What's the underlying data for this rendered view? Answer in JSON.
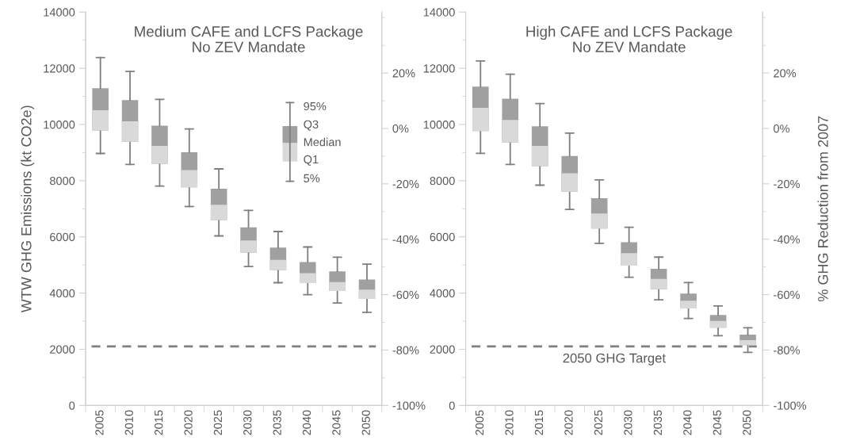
{
  "chart_data": [
    {
      "type": "box",
      "title": "Medium CAFE and LCFS Package\nNo ZEV Mandate",
      "ylabel": "WTW GHG Emissions (kt CO2e)",
      "categories": [
        "2005",
        "2010",
        "2015",
        "2020",
        "2025",
        "2030",
        "2035",
        "2040",
        "2045",
        "2050"
      ],
      "series": [
        {
          "color": "#a0a0a0",
          "boxes": [
            {
              "low": 8970,
              "q1": 9785,
              "median": 10510,
              "q3": 11290,
              "high": 12380
            },
            {
              "low": 8580,
              "q1": 9385,
              "median": 10115,
              "q3": 10870,
              "high": 11885
            },
            {
              "low": 7810,
              "q1": 8600,
              "median": 9240,
              "q3": 9955,
              "high": 10890
            },
            {
              "low": 7080,
              "q1": 7760,
              "median": 8375,
              "q3": 9015,
              "high": 9840
            },
            {
              "low": 6035,
              "q1": 6600,
              "median": 7140,
              "q3": 7715,
              "high": 8420
            },
            {
              "low": 4945,
              "q1": 5445,
              "median": 5870,
              "q3": 6340,
              "high": 6940
            },
            {
              "low": 4370,
              "q1": 4820,
              "median": 5180,
              "q3": 5615,
              "high": 6190
            },
            {
              "low": 3940,
              "q1": 4355,
              "median": 4710,
              "q3": 5105,
              "high": 5640
            },
            {
              "low": 3645,
              "q1": 4070,
              "median": 4390,
              "q3": 4775,
              "high": 5275
            },
            {
              "low": 3315,
              "q1": 3790,
              "median": 4125,
              "q3": 4485,
              "high": 5030
            }
          ]
        }
      ],
      "ylim": [
        0,
        14000
      ],
      "yticks": [
        0,
        2000,
        4000,
        6000,
        8000,
        10000,
        12000,
        14000
      ],
      "y2lim": [
        -100,
        42
      ],
      "y2ticks": [
        {
          "value": -100,
          "label": "-100%"
        },
        {
          "value": -80,
          "label": "-80%"
        },
        {
          "value": -60,
          "label": "-60%"
        },
        {
          "value": -40,
          "label": "-40%"
        },
        {
          "value": -20,
          "label": "-20%"
        },
        {
          "value": 0,
          "label": "0%"
        },
        {
          "value": 20,
          "label": "20%"
        }
      ],
      "ref_lines": [
        {
          "axis": "y",
          "value": 2100,
          "color": "#7f7f7f",
          "line_style": "dashed"
        }
      ],
      "annotations": [
        "95%",
        "Q3",
        "Median",
        "Q1",
        "5%"
      ]
    },
    {
      "type": "box",
      "title": "High CAFE and LCFS Package\nNo ZEV Mandate",
      "y2label": "% GHG Reduction from 2007",
      "categories": [
        "2005",
        "2010",
        "2015",
        "2020",
        "2025",
        "2030",
        "2035",
        "2040",
        "2045",
        "2050"
      ],
      "series": [
        {
          "color": "#a0a0a0",
          "boxes": [
            {
              "low": 8975,
              "q1": 9765,
              "median": 10590,
              "q3": 11345,
              "high": 12260
            },
            {
              "low": 8580,
              "q1": 9365,
              "median": 10160,
              "q3": 10920,
              "high": 11790
            },
            {
              "low": 7840,
              "q1": 8520,
              "median": 9240,
              "q3": 9935,
              "high": 10745
            },
            {
              "low": 6975,
              "q1": 7610,
              "median": 8265,
              "q3": 8880,
              "high": 9695
            },
            {
              "low": 5770,
              "q1": 6295,
              "median": 6835,
              "q3": 7375,
              "high": 8030
            },
            {
              "low": 4565,
              "q1": 4975,
              "median": 5420,
              "q3": 5810,
              "high": 6340
            },
            {
              "low": 3760,
              "q1": 4140,
              "median": 4500,
              "q3": 4860,
              "high": 5280
            },
            {
              "low": 3095,
              "q1": 3455,
              "median": 3730,
              "q3": 3980,
              "high": 4375
            },
            {
              "low": 2480,
              "q1": 2765,
              "median": 3010,
              "q3": 3220,
              "high": 3540
            },
            {
              "low": 1890,
              "q1": 2150,
              "median": 2320,
              "q3": 2520,
              "high": 2765
            }
          ]
        }
      ],
      "ylim": [
        0,
        14000
      ],
      "yticks": [
        0,
        2000,
        4000,
        6000,
        8000,
        10000,
        12000,
        14000
      ],
      "y2lim": [
        -100,
        42
      ],
      "y2ticks": [
        {
          "value": -100,
          "label": "-100%"
        },
        {
          "value": -80,
          "label": "-80%"
        },
        {
          "value": -60,
          "label": "-60%"
        },
        {
          "value": -40,
          "label": "-40%"
        },
        {
          "value": -20,
          "label": "-20%"
        },
        {
          "value": 0,
          "label": "0%"
        },
        {
          "value": 20,
          "label": "20%"
        }
      ],
      "ref_lines": [
        {
          "axis": "y",
          "value": 2100,
          "label": "2050 GHG Target",
          "color": "#7f7f7f",
          "line_style": "dashed"
        }
      ]
    }
  ]
}
